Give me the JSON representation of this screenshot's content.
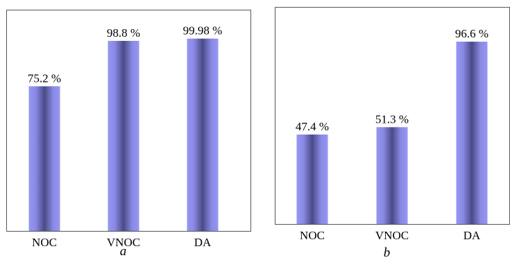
{
  "chart_data": [
    {
      "type": "bar",
      "panel_label": "a",
      "categories": [
        "NOC",
        "VNOC",
        "DA"
      ],
      "values": [
        75.2,
        98.8,
        99.98
      ],
      "value_labels": [
        "75.2 %",
        "98.8 %",
        "99.98 %"
      ],
      "ylim": [
        0,
        115
      ],
      "grid": false,
      "bar_color": "#9090ee"
    },
    {
      "type": "bar",
      "panel_label": "b",
      "categories": [
        "NOC",
        "VNOC",
        "DA"
      ],
      "values": [
        47.4,
        51.3,
        96.6
      ],
      "value_labels": [
        "47.4 %",
        "51.3 %",
        "96.6 %"
      ],
      "ylim": [
        0,
        115
      ],
      "grid": false,
      "bar_color": "#9090ee"
    }
  ]
}
